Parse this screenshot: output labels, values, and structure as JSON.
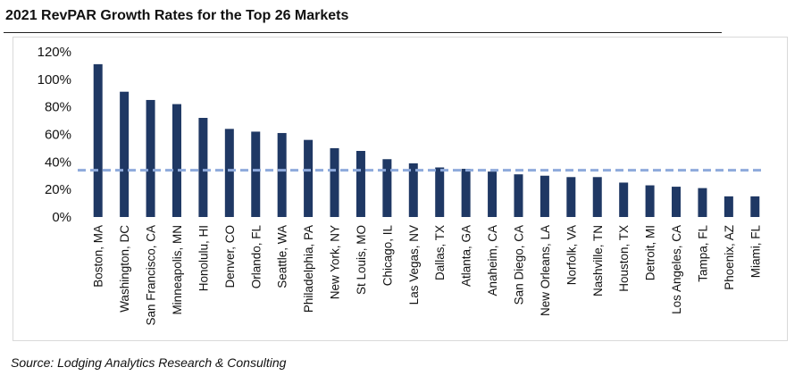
{
  "title": "2021 RevPAR Growth Rates for the Top 26 Markets",
  "source": "Source:  Lodging Analytics Research & Consulting",
  "colors": {
    "bar": "#1f3864",
    "average_line": "#8eaadb",
    "axis_text": "#111111"
  },
  "chart_data": {
    "type": "bar",
    "title": "2021 RevPAR Growth Rates for the Top 26 Markets",
    "xlabel": "",
    "ylabel": "",
    "ylim": [
      0,
      1.2
    ],
    "yticks": [
      "0%",
      "20%",
      "40%",
      "60%",
      "80%",
      "100%",
      "120%"
    ],
    "grid": false,
    "legend": "none",
    "categories": [
      "Boston, MA",
      "Washington, DC",
      "San Francisco, CA",
      "Minneapolis, MN",
      "Honolulu, HI",
      "Denver, CO",
      "Orlando, FL",
      "Seattle, WA",
      "Philadelphia, PA",
      "New York, NY",
      "St Louis, MO",
      "Chicago, IL",
      "Las Vegas, NV",
      "Dallas, TX",
      "Atlanta, GA",
      "Anaheim, CA",
      "San Diego, CA",
      "New Orleans, LA",
      "Norfolk, VA",
      "Nashville, TN",
      "Houston, TX",
      "Detroit, MI",
      "Los Angeles, CA",
      "Tampa, FL",
      "Phoenix, AZ",
      "Miami, FL"
    ],
    "values": [
      1.11,
      0.91,
      0.85,
      0.82,
      0.72,
      0.64,
      0.62,
      0.61,
      0.56,
      0.5,
      0.48,
      0.42,
      0.39,
      0.36,
      0.35,
      0.33,
      0.31,
      0.3,
      0.29,
      0.29,
      0.25,
      0.23,
      0.22,
      0.21,
      0.15,
      0.15
    ],
    "average_line": 0.34
  }
}
